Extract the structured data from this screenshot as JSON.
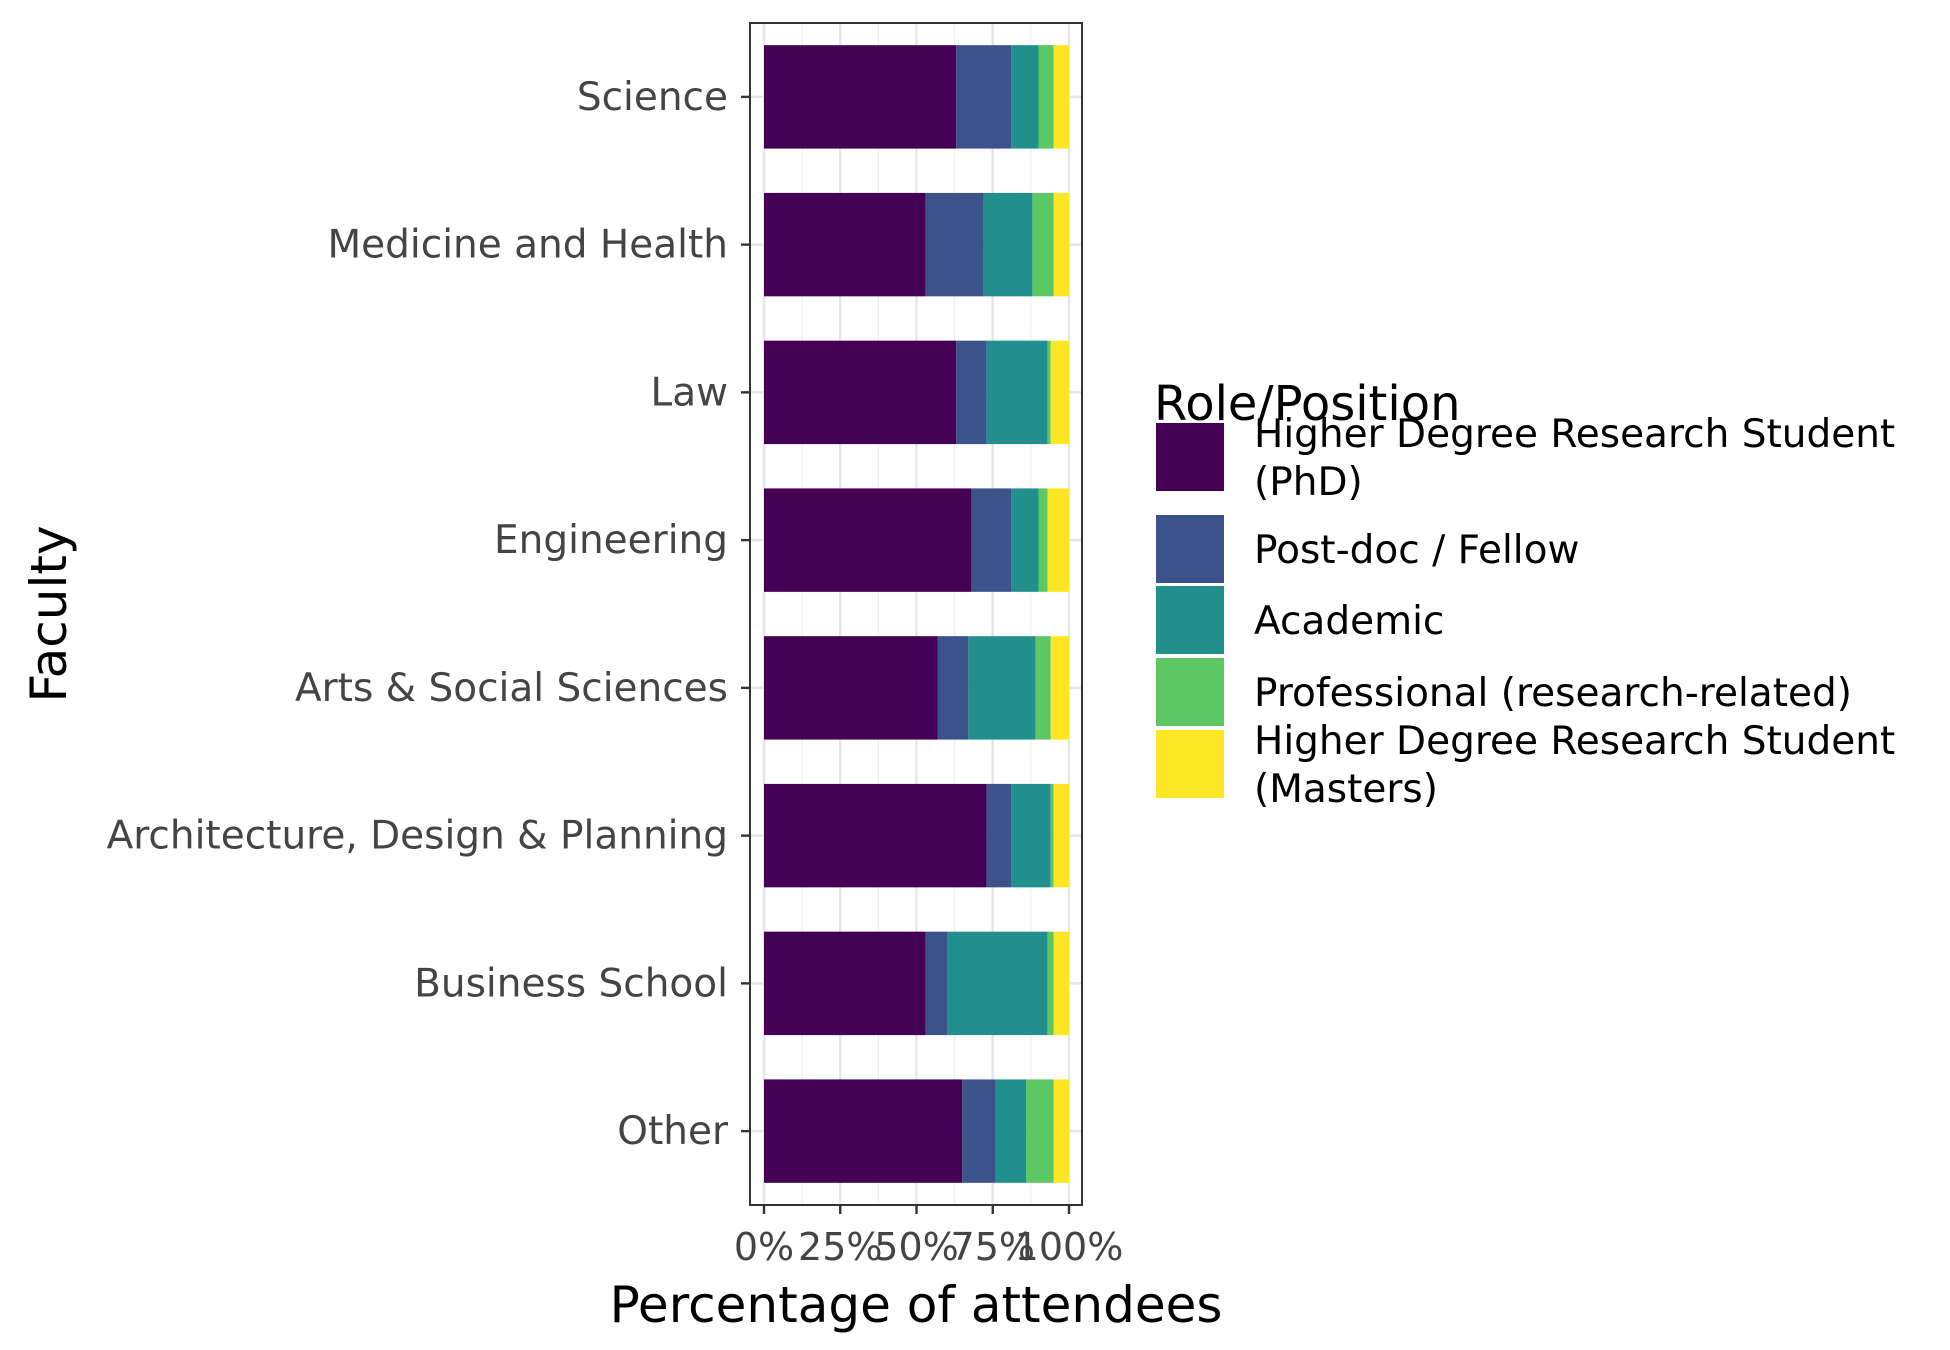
{
  "chart_data": {
    "type": "bar",
    "orientation": "horizontal",
    "stacked": true,
    "normalized": true,
    "xlabel": "Percentage of attendees",
    "ylabel": "Faculty",
    "xlim": [
      0,
      100
    ],
    "x_ticks": [
      "0%",
      "25%",
      "50%",
      "75%",
      "100%"
    ],
    "grid": true,
    "legend_position": "right",
    "legend_title": "Role/Position",
    "categories": [
      "Science",
      "Medicine and Health",
      "Law",
      "Engineering",
      "Arts & Social Sciences",
      "Architecture, Design & Planning",
      "Business School",
      "Other"
    ],
    "series": [
      {
        "name": "Higher Degree Research Student (PhD)",
        "label_lines": [
          "Higher Degree Research Student",
          "(PhD)"
        ],
        "color": "#440154",
        "values": [
          63,
          53,
          63,
          68,
          57,
          73,
          53,
          65
        ]
      },
      {
        "name": "Post-doc / Fellow",
        "label_lines": [
          "Post-doc / Fellow"
        ],
        "color": "#3B528B",
        "values": [
          18,
          19,
          10,
          13,
          10,
          8,
          7,
          11
        ]
      },
      {
        "name": "Academic",
        "label_lines": [
          "Academic"
        ],
        "color": "#21908C",
        "values": [
          9,
          16,
          20,
          9,
          22,
          13,
          33,
          10
        ]
      },
      {
        "name": "Professional (research-related)",
        "label_lines": [
          "Professional (research-related)"
        ],
        "color": "#5DC863",
        "values": [
          5,
          7,
          1,
          3,
          5,
          1,
          2,
          9
        ]
      },
      {
        "name": "Higher Degree Research Student (Masters)",
        "label_lines": [
          "Higher Degree Research Student",
          "(Masters)"
        ],
        "color": "#FDE725",
        "values": [
          5,
          5,
          6,
          7,
          6,
          5,
          5,
          5
        ]
      }
    ]
  }
}
